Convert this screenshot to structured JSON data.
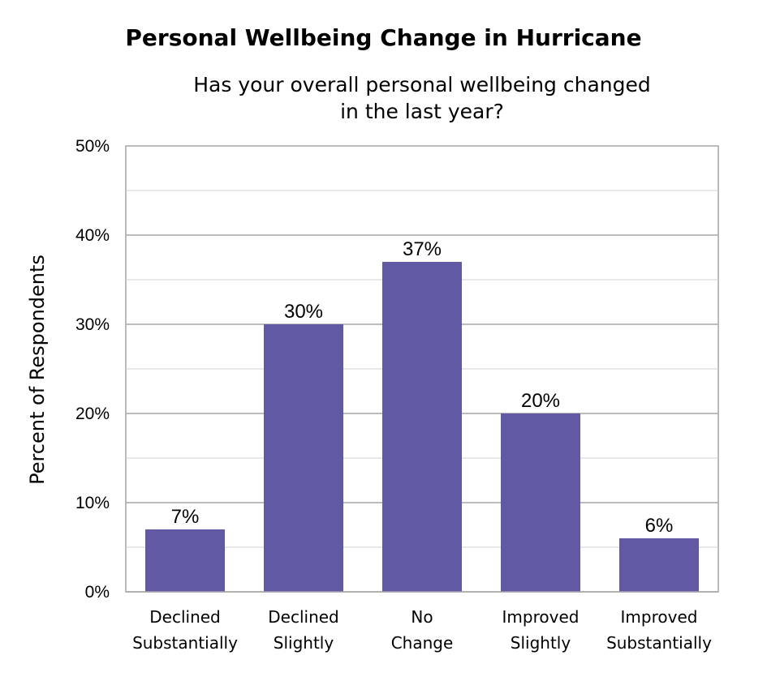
{
  "chart_data": {
    "type": "bar",
    "title": "Personal Wellbeing Change in Hurricane",
    "subtitle": "Has your overall personal wellbeing changed in the last year?",
    "xlabel": "",
    "ylabel": "Percent of Respondents",
    "categories": [
      [
        "Declined",
        "Substantially"
      ],
      [
        "Declined",
        "Slightly"
      ],
      [
        "No",
        "Change"
      ],
      [
        "Improved",
        "Slightly"
      ],
      [
        "Improved",
        "Substantially"
      ]
    ],
    "values": [
      7,
      30,
      37,
      20,
      6
    ],
    "value_labels": [
      "7%",
      "30%",
      "37%",
      "20%",
      "6%"
    ],
    "ylim": [
      0,
      50
    ],
    "yticks": [
      0,
      10,
      20,
      30,
      40,
      50
    ],
    "ytick_labels": [
      "0%",
      "10%",
      "20%",
      "30%",
      "40%",
      "50%"
    ],
    "grid": true,
    "bar_color": "#6159A4"
  }
}
